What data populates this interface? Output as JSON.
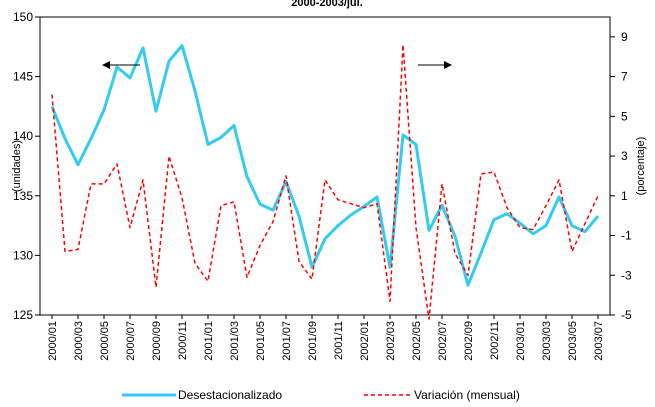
{
  "chart_data": {
    "type": "line",
    "title": "2000-2003/jul.",
    "ylabel_left": "(unidades)",
    "ylabel_right": "(porcentaje)",
    "ylim_left": [
      125,
      150
    ],
    "ylim_right": [
      -5,
      10
    ],
    "yticks_left": [
      "125",
      "130",
      "135",
      "140",
      "145",
      "150"
    ],
    "yticks_right": [
      "-5",
      "-3",
      "-1",
      "1",
      "3",
      "5",
      "7",
      "9"
    ],
    "x": [
      "2000/01",
      "2000/02",
      "2000/03",
      "2000/04",
      "2000/05",
      "2000/06",
      "2000/07",
      "2000/08",
      "2000/09",
      "2000/10",
      "2000/11",
      "2000/12",
      "2001/01",
      "2001/02",
      "2001/03",
      "2001/04",
      "2001/05",
      "2001/06",
      "2001/07",
      "2001/08",
      "2001/09",
      "2001/10",
      "2001/11",
      "2001/12",
      "2002/01",
      "2002/02",
      "2002/03",
      "2002/04",
      "2002/05",
      "2002/06",
      "2002/07",
      "2002/08",
      "2002/09",
      "2002/10",
      "2002/11",
      "2002/12",
      "2003/01",
      "2003/02",
      "2003/03",
      "2003/04",
      "2003/05",
      "2003/06",
      "2003/07"
    ],
    "xtick_labels": [
      "2000/01",
      "2000/03",
      "2000/05",
      "2000/07",
      "2000/09",
      "2000/11",
      "2001/01",
      "2001/03",
      "2001/05",
      "2001/07",
      "2001/09",
      "2001/11",
      "2002/01",
      "2002/03",
      "2002/05",
      "2002/07",
      "2002/09",
      "2002/11",
      "2003/01",
      "2003/03",
      "2003/05",
      "2003/07"
    ],
    "series": [
      {
        "name": "Desestacionalizado",
        "axis": "left",
        "color": "#33ccee",
        "style": "solid",
        "values": [
          142.5,
          139.8,
          137.6,
          139.8,
          142.2,
          145.8,
          144.9,
          147.4,
          142.1,
          146.3,
          147.6,
          143.8,
          139.3,
          139.9,
          140.9,
          136.6,
          134.3,
          133.8,
          136.2,
          133.3,
          129.0,
          131.4,
          132.5,
          133.4,
          134.1,
          134.9,
          129.0,
          140.1,
          139.3,
          132.1,
          134.2,
          131.6,
          127.5,
          130.2,
          133.0,
          133.5,
          132.7,
          131.8,
          132.5,
          134.9,
          132.5,
          132.0,
          133.3
        ]
      },
      {
        "name": "Variación (mensual)",
        "axis": "right",
        "color": "#ff0000",
        "style": "dashed",
        "values": [
          6.1,
          -1.8,
          -1.7,
          1.6,
          1.6,
          2.6,
          -0.6,
          1.8,
          -3.6,
          3.0,
          0.9,
          -2.4,
          -3.3,
          0.5,
          0.7,
          -3.1,
          -1.5,
          -0.3,
          2.0,
          -2.3,
          -3.2,
          1.8,
          0.8,
          0.6,
          0.4,
          0.6,
          -4.3,
          8.6,
          -0.6,
          -5.2,
          1.6,
          -1.9,
          -3.0,
          2.1,
          2.2,
          0.4,
          -0.6,
          -0.7,
          0.5,
          1.8,
          -1.8,
          -0.4,
          1.0
        ]
      }
    ],
    "annotations": [
      "arrow-left: Desestacionalizado uses left axis",
      "arrow-right: Variación uses right axis"
    ],
    "legend_position": "bottom",
    "grid": false
  }
}
